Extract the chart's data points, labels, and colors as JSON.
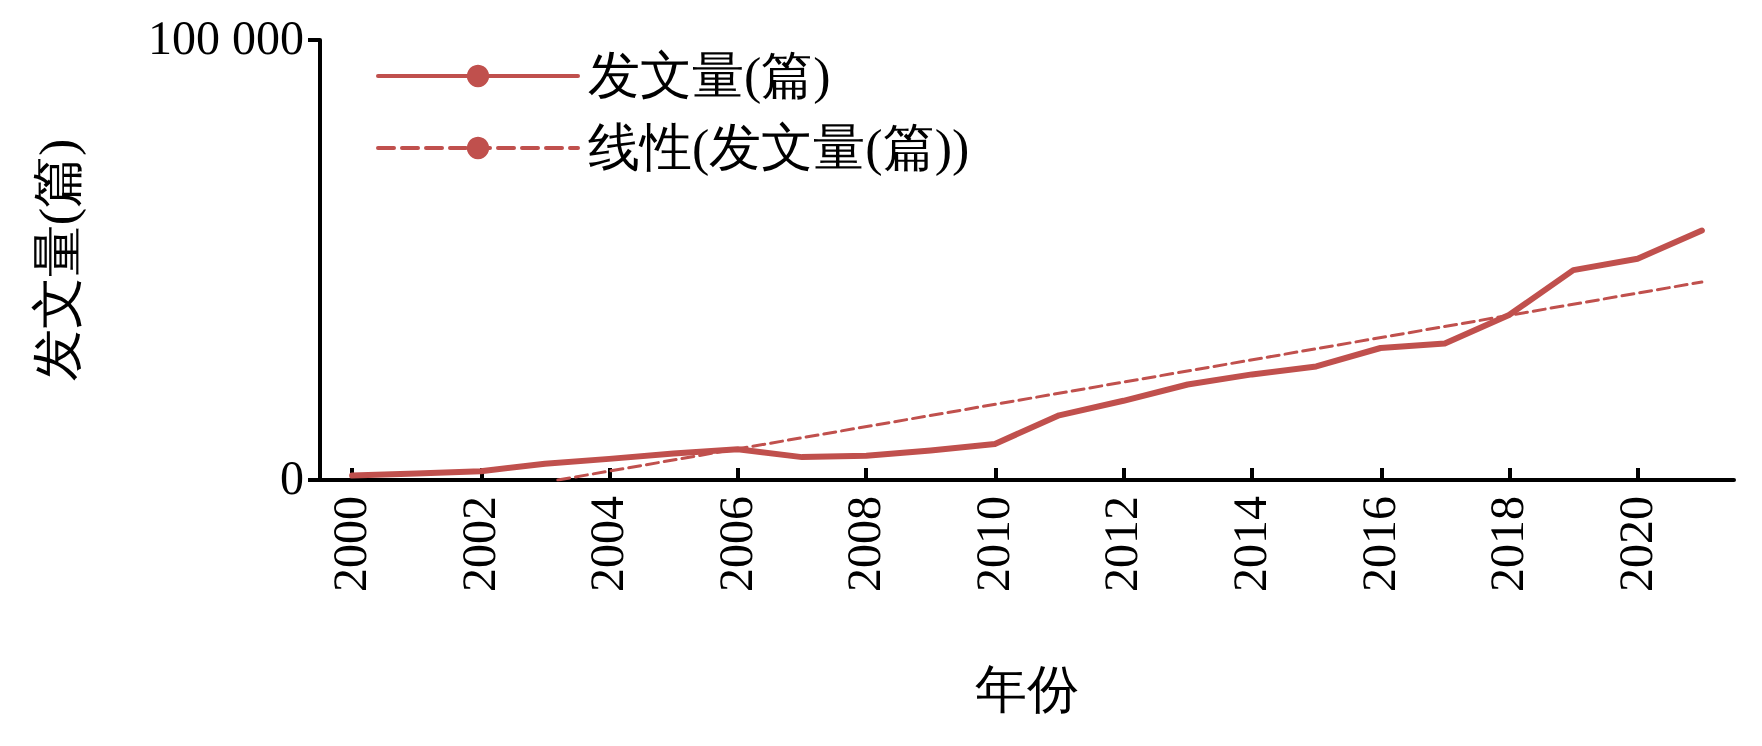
{
  "chart_data": {
    "type": "line",
    "xlabel": "年份",
    "ylabel": "发文量(篇)",
    "xlim": [
      1999.5,
      2021.5
    ],
    "xticks": [
      2000,
      2002,
      2004,
      2006,
      2008,
      2010,
      2012,
      2014,
      2016,
      2018,
      2020
    ],
    "ylim": [
      0,
      100000
    ],
    "yticks": [
      0,
      {
        "value": 100000,
        "label": "100 000"
      }
    ],
    "x": [
      2000,
      2001,
      2002,
      2003,
      2004,
      2005,
      2006,
      2007,
      2008,
      2009,
      2010,
      2011,
      2012,
      2013,
      2014,
      2015,
      2016,
      2017,
      2018,
      2019,
      2020,
      2021
    ],
    "series": [
      {
        "name": "发文量(篇)",
        "color": "#c0504d",
        "line_style": "solid",
        "values": [
          1000,
          1500,
          2000,
          3700,
          4800,
          6000,
          7000,
          5200,
          5500,
          6700,
          8200,
          14700,
          18000,
          21700,
          24000,
          25800,
          30000,
          31000,
          37500,
          47700,
          50300,
          56700
        ]
      },
      {
        "name": "线性(发文量(篇))",
        "color": "#c0504d",
        "line_style": "dashed",
        "x": [
          2003.2,
          2021
        ],
        "values": [
          0,
          45000
        ]
      }
    ],
    "legend": "top left",
    "grid": false,
    "marker": "none"
  }
}
